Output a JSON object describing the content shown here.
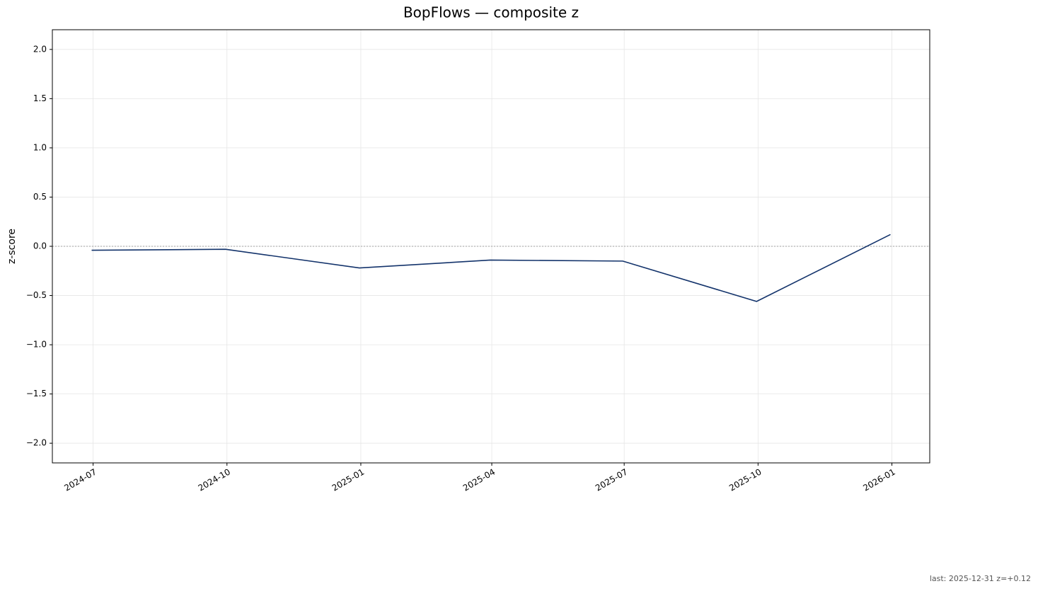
{
  "chart_data": {
    "type": "line",
    "title": "BopFlows — composite z",
    "y_label": "z-score",
    "annotation": "last: 2025-12-31 z=+0.12",
    "x": [
      "2024-06-30",
      "2024-09-30",
      "2024-12-31",
      "2025-03-31",
      "2025-06-30",
      "2025-09-30",
      "2025-12-31"
    ],
    "series": [
      {
        "color": "#13336b",
        "values": [
          -0.04,
          -0.03,
          -0.22,
          -0.14,
          -0.15,
          -0.56,
          0.12
        ]
      }
    ],
    "xlim": [
      "2024-06-03",
      "2026-01-27"
    ],
    "xticks": [
      {
        "value": "2024-07-01",
        "label": "2024-07"
      },
      {
        "value": "2024-10-01",
        "label": "2024-10"
      },
      {
        "value": "2025-01-01",
        "label": "2025-01"
      },
      {
        "value": "2025-04-01",
        "label": "2025-04"
      },
      {
        "value": "2025-07-01",
        "label": "2025-07"
      },
      {
        "value": "2025-10-01",
        "label": "2025-10"
      },
      {
        "value": "2026-01-01",
        "label": "2026-01"
      }
    ],
    "ylim": [
      -2.2,
      2.2
    ],
    "yticks": [
      {
        "value": -2,
        "label": "−2.0"
      },
      {
        "value": -1.5,
        "label": "−1.5"
      },
      {
        "value": -1,
        "label": "−1.0"
      },
      {
        "value": -0.5,
        "label": "−0.5"
      },
      {
        "value": 0,
        "label": "0.0"
      },
      {
        "value": 0.5,
        "label": "0.5"
      },
      {
        "value": 1,
        "label": "1.0"
      },
      {
        "value": 1.5,
        "label": "1.5"
      },
      {
        "value": 2,
        "label": "2.0"
      }
    ],
    "reference_line": 0,
    "grid": true
  }
}
